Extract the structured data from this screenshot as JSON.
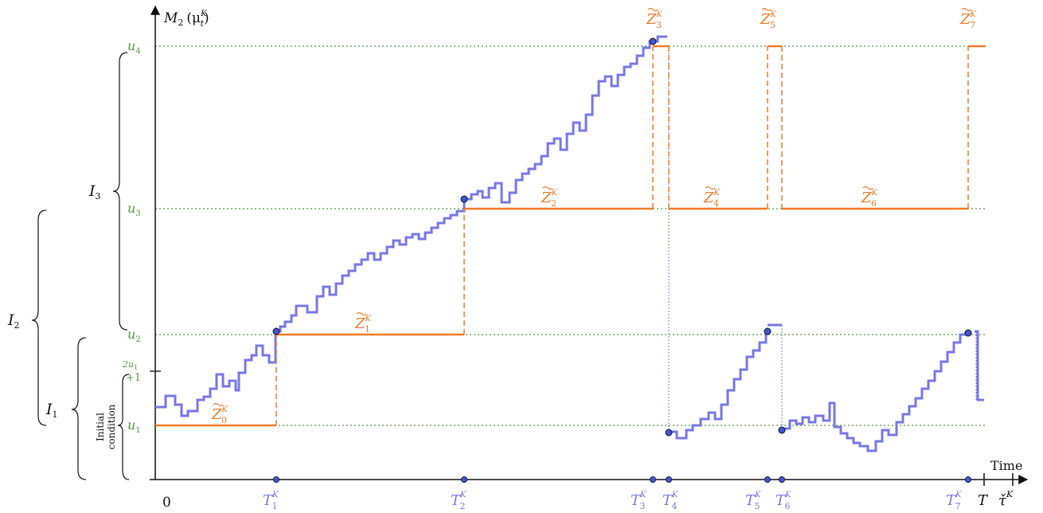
{
  "y_axis_label": "M",
  "y_axis_label_sub": "2",
  "y_axis_label_arg": "(μ",
  "y_axis_label_arg_sub": "t",
  "y_axis_label_arg_sup": "K",
  "y_axis_label_close": ")",
  "x_axis_label": "Time",
  "origin_label": "0",
  "level_labels": [
    {
      "base": "u",
      "sub": "4"
    },
    {
      "base": "u",
      "sub": "3"
    },
    {
      "base": "u",
      "sub": "2"
    },
    {
      "base": "u",
      "sub": "1"
    }
  ],
  "threshold_label_top": "2u",
  "threshold_label_top_sub": "1",
  "threshold_label_bottom": "+1",
  "interval_labels": [
    {
      "base": "I",
      "sub": "3"
    },
    {
      "base": "I",
      "sub": "2"
    },
    {
      "base": "I",
      "sub": "1"
    }
  ],
  "initial_condition_line1": "Initial",
  "initial_condition_line2": "condition",
  "z_labels": [
    {
      "base": "Z",
      "sub": "0",
      "sup": "K"
    },
    {
      "base": "Z",
      "sub": "1",
      "sup": "K"
    },
    {
      "base": "Z",
      "sub": "2",
      "sup": "K"
    },
    {
      "base": "Z",
      "sub": "3",
      "sup": "K"
    },
    {
      "base": "Z",
      "sub": "4",
      "sup": "K"
    },
    {
      "base": "Z",
      "sub": "5",
      "sup": "K"
    },
    {
      "base": "Z",
      "sub": "6",
      "sup": "K"
    },
    {
      "base": "Z",
      "sub": "7",
      "sup": "K"
    }
  ],
  "t_labels": [
    {
      "base": "T",
      "sub": "1",
      "sup": "K"
    },
    {
      "base": "T",
      "sub": "2",
      "sup": "K"
    },
    {
      "base": "T",
      "sub": "3",
      "sup": "K"
    },
    {
      "base": "T",
      "sub": "4",
      "sup": "K"
    },
    {
      "base": "T",
      "sub": "5",
      "sup": "K"
    },
    {
      "base": "T",
      "sub": "6",
      "sup": "K"
    },
    {
      "base": "T",
      "sub": "7",
      "sup": "K"
    }
  ],
  "end_label": "T",
  "tau_label": "τ̌",
  "tau_label_sup": "K",
  "colors": {
    "level_lines": "#4a9e3a",
    "process": "#ee7a28",
    "trajectory": "#7777e6",
    "axis": "#111111"
  }
}
